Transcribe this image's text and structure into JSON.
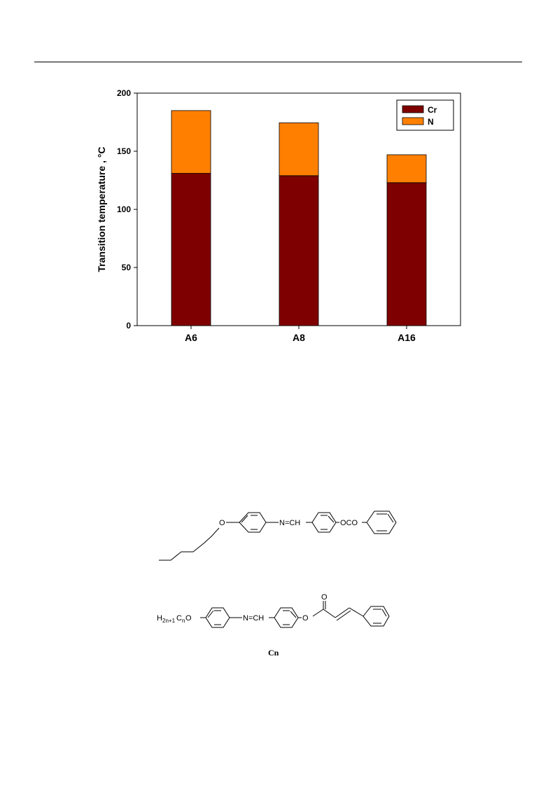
{
  "chart_data": {
    "type": "bar",
    "stacked": true,
    "categories": [
      "A6",
      "A8",
      "A16"
    ],
    "series": [
      {
        "name": "Cr",
        "values": [
          131,
          129,
          123
        ],
        "color": "#7f0000"
      },
      {
        "name": "N",
        "values": [
          54,
          45.5,
          24
        ],
        "color": "#ff8000"
      }
    ],
    "ylabel": "Transition temperature ,",
    "ylabel_unit": "°C",
    "ylim": [
      0,
      200
    ],
    "yticks": [
      "0",
      "50",
      "100",
      "150",
      "200"
    ],
    "legend_position": "top-right",
    "grid": false
  },
  "structures": {
    "mol1": {
      "labels": {
        "ether_o": "O",
        "imine": "N=CH",
        "ester": "OCO"
      }
    },
    "mol2": {
      "labels": {
        "chain_h": "H",
        "chain_h_sub": "2n+1",
        "chain_c": "C",
        "chain_c_sub": "n",
        "chain_o": "O",
        "imine": "N=CH",
        "ester_o": "O",
        "carbonyl_o": "O"
      },
      "caption": "Cn"
    }
  }
}
